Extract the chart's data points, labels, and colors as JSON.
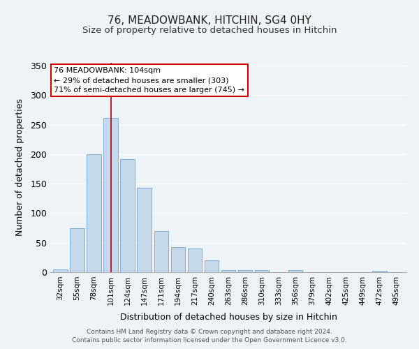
{
  "title": "76, MEADOWBANK, HITCHIN, SG4 0HY",
  "subtitle": "Size of property relative to detached houses in Hitchin",
  "xlabel": "Distribution of detached houses by size in Hitchin",
  "ylabel": "Number of detached properties",
  "bar_color": "#c5d9eb",
  "bar_edge_color": "#7bafd4",
  "categories": [
    "32sqm",
    "55sqm",
    "78sqm",
    "101sqm",
    "124sqm",
    "147sqm",
    "171sqm",
    "194sqm",
    "217sqm",
    "240sqm",
    "263sqm",
    "286sqm",
    "310sqm",
    "333sqm",
    "356sqm",
    "379sqm",
    "402sqm",
    "425sqm",
    "449sqm",
    "472sqm",
    "495sqm"
  ],
  "values": [
    5,
    75,
    200,
    262,
    192,
    143,
    70,
    43,
    40,
    20,
    3,
    3,
    4,
    0,
    3,
    0,
    0,
    0,
    0,
    2,
    0
  ],
  "ylim": [
    0,
    355
  ],
  "yticks": [
    0,
    50,
    100,
    150,
    200,
    250,
    300,
    350
  ],
  "annotation_text_line1": "76 MEADOWBANK: 104sqm",
  "annotation_text_line2": "← 29% of detached houses are smaller (303)",
  "annotation_text_line3": "71% of semi-detached houses are larger (745) →",
  "property_bar_index": 3,
  "property_line_color": "#aa0000",
  "footer_line1": "Contains HM Land Registry data © Crown copyright and database right 2024.",
  "footer_line2": "Contains public sector information licensed under the Open Government Licence v3.0.",
  "background_color": "#eef3f8"
}
